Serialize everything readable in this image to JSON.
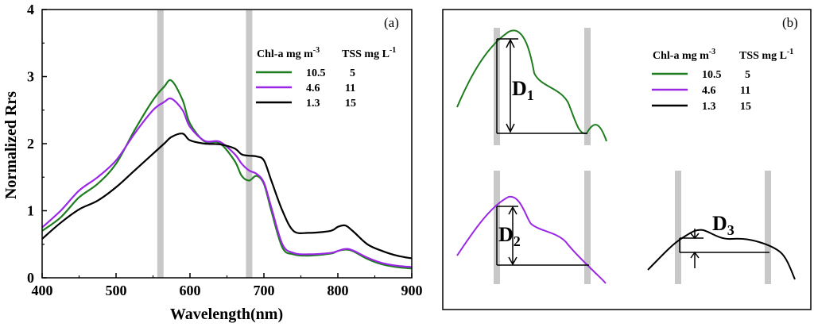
{
  "chart_data": [
    {
      "type": "line",
      "panel_label": "(a)",
      "xlabel": "Wavelength(nm)",
      "ylabel": "Normalized Rrs",
      "xlim": [
        400,
        900
      ],
      "ylim": [
        0,
        4
      ],
      "xticks": [
        "400",
        "500",
        "600",
        "700",
        "800",
        "900"
      ],
      "yticks": [
        "0",
        "1",
        "2",
        "3",
        "4"
      ],
      "highlight_bands_nm": [
        560,
        680
      ],
      "legend": {
        "header_chl": "Chl-a mg m",
        "header_chl_sup": "-3",
        "header_tss": "TSS mg L",
        "header_tss_sup": "-1",
        "rows": [
          {
            "chl": "10.5",
            "tss": "5",
            "color": "#1e7d1e"
          },
          {
            "chl": "4.6",
            "tss": "11",
            "color": "#9b27e6"
          },
          {
            "chl": "1.3",
            "tss": "15",
            "color": "#000000"
          }
        ]
      },
      "series": [
        {
          "name": "10.5",
          "color": "#1e7d1e",
          "x": [
            400,
            425,
            450,
            475,
            500,
            525,
            550,
            565,
            575,
            590,
            600,
            620,
            640,
            660,
            670,
            680,
            690,
            700,
            710,
            725,
            740,
            760,
            790,
            800,
            810,
            820,
            840,
            860,
            880,
            900
          ],
          "y": [
            0.7,
            0.9,
            1.2,
            1.4,
            1.7,
            2.2,
            2.65,
            2.85,
            2.94,
            2.65,
            2.3,
            2.03,
            2.01,
            1.75,
            1.52,
            1.45,
            1.52,
            1.4,
            1.0,
            0.45,
            0.35,
            0.33,
            0.36,
            0.4,
            0.42,
            0.4,
            0.28,
            0.2,
            0.16,
            0.14
          ]
        },
        {
          "name": "4.6",
          "color": "#9b27e6",
          "x": [
            400,
            425,
            450,
            475,
            500,
            525,
            550,
            565,
            575,
            590,
            600,
            620,
            640,
            660,
            670,
            680,
            690,
            700,
            710,
            725,
            740,
            760,
            790,
            800,
            810,
            820,
            840,
            860,
            880,
            900
          ],
          "y": [
            0.75,
            1.0,
            1.3,
            1.5,
            1.75,
            2.15,
            2.5,
            2.62,
            2.67,
            2.5,
            2.25,
            2.04,
            2.03,
            1.85,
            1.7,
            1.6,
            1.55,
            1.42,
            1.05,
            0.5,
            0.37,
            0.35,
            0.37,
            0.4,
            0.43,
            0.41,
            0.3,
            0.22,
            0.18,
            0.16
          ]
        },
        {
          "name": "1.3",
          "color": "#000000",
          "x": [
            400,
            425,
            450,
            475,
            500,
            525,
            550,
            565,
            575,
            590,
            600,
            620,
            640,
            660,
            670,
            680,
            690,
            700,
            710,
            725,
            740,
            760,
            790,
            800,
            810,
            820,
            840,
            860,
            880,
            900
          ],
          "y": [
            0.58,
            0.82,
            1.02,
            1.15,
            1.35,
            1.6,
            1.85,
            2.0,
            2.1,
            2.15,
            2.05,
            2.0,
            1.99,
            1.93,
            1.84,
            1.82,
            1.81,
            1.75,
            1.45,
            1.0,
            0.7,
            0.67,
            0.7,
            0.76,
            0.78,
            0.7,
            0.5,
            0.4,
            0.33,
            0.29
          ]
        }
      ]
    },
    {
      "type": "diagram",
      "panel_label": "(b)",
      "legend": {
        "header_chl": "Chl-a mg m",
        "header_chl_sup": "-3",
        "header_tss": "TSS mg L",
        "header_tss_sup": "-1",
        "rows": [
          {
            "chl": "10.5",
            "tss": "5",
            "color": "#1e7d1e"
          },
          {
            "chl": "4.6",
            "tss": "11",
            "color": "#9b27e6"
          },
          {
            "chl": "1.3",
            "tss": "15",
            "color": "#000000"
          }
        ]
      },
      "labels": [
        {
          "main": "D",
          "sub": "1"
        },
        {
          "main": "D",
          "sub": "2"
        },
        {
          "main": "D",
          "sub": "3"
        }
      ]
    }
  ]
}
